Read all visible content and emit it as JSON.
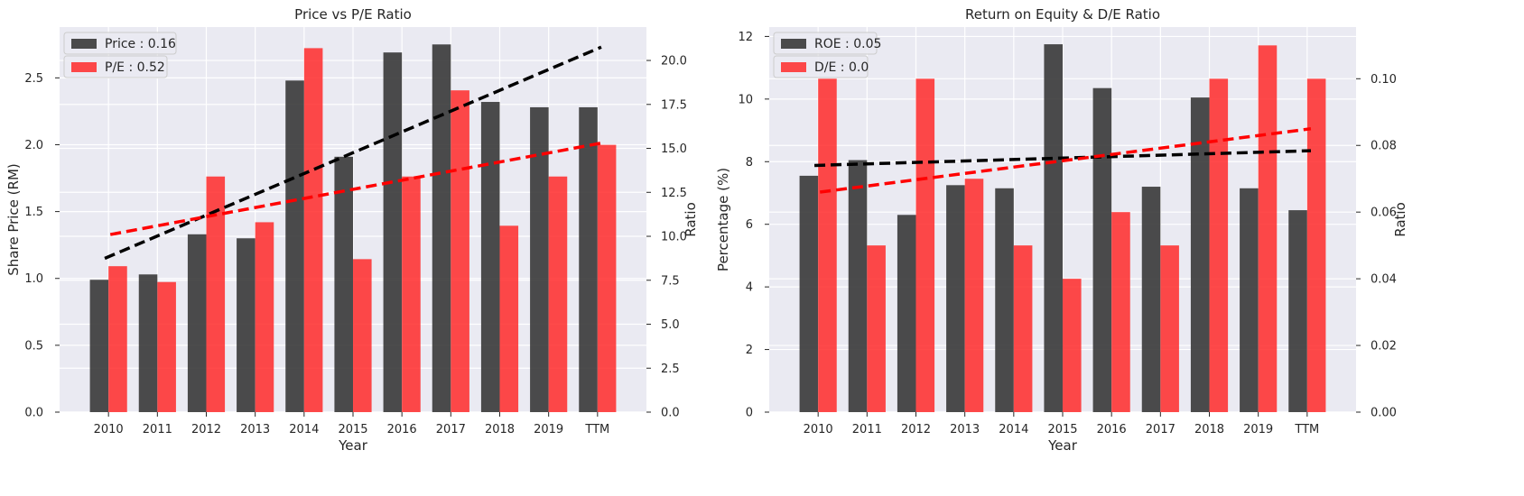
{
  "colors": {
    "plot_bg": "#eaeaf2",
    "grid": "#ffffff",
    "bar_primary": "#333333",
    "bar_secondary": "#ff2a2a",
    "trend_primary": "#000000",
    "trend_secondary": "#ff0000"
  },
  "chart_data": [
    {
      "type": "bar",
      "title": "Price vs P/E Ratio",
      "xlabel": "Year",
      "ylabel_left": "Share Price (RM)",
      "ylabel_right": "Ratio",
      "categories": [
        "2010",
        "2011",
        "2012",
        "2013",
        "2014",
        "2015",
        "2016",
        "2017",
        "2018",
        "2019",
        "TTM"
      ],
      "ylim_left": [
        0,
        2.88
      ],
      "ylim_right": [
        0,
        21.9
      ],
      "yticks_left": [
        "0.0",
        "0.5",
        "1.0",
        "1.5",
        "2.0",
        "2.5"
      ],
      "yticks_right": [
        "0.0",
        "2.5",
        "5.0",
        "7.5",
        "10.0",
        "12.5",
        "15.0",
        "17.5",
        "20.0"
      ],
      "legend_position": "top-left",
      "grid": true,
      "series": [
        {
          "name": "Price : 0.16",
          "axis": "left",
          "values": [
            0.99,
            1.03,
            1.33,
            1.3,
            2.48,
            1.91,
            2.69,
            2.75,
            2.32,
            2.28,
            2.28
          ],
          "trend": [
            1.15,
            2.73
          ]
        },
        {
          "name": "P/E : 0.52",
          "axis": "right",
          "values": [
            8.3,
            7.4,
            13.4,
            10.8,
            20.7,
            8.7,
            13.4,
            18.3,
            10.6,
            13.4,
            15.2
          ],
          "trend": [
            10.1,
            15.3
          ]
        }
      ]
    },
    {
      "type": "bar",
      "title": "Return on Equity & D/E Ratio",
      "xlabel": "Year",
      "ylabel_left": "Percentage (%)",
      "ylabel_right": "Ratio",
      "categories": [
        "2010",
        "2011",
        "2012",
        "2013",
        "2014",
        "2015",
        "2016",
        "2017",
        "2018",
        "2019",
        "TTM"
      ],
      "ylim_left": [
        0,
        12.3
      ],
      "ylim_right": [
        0,
        0.1155
      ],
      "yticks_left": [
        "0",
        "2",
        "4",
        "6",
        "8",
        "10",
        "12"
      ],
      "yticks_right": [
        "0.00",
        "0.02",
        "0.04",
        "0.06",
        "0.08",
        "0.10"
      ],
      "legend_position": "top-left",
      "grid": true,
      "series": [
        {
          "name": "ROE : 0.05",
          "axis": "left",
          "values": [
            7.55,
            8.05,
            6.3,
            7.25,
            7.15,
            11.75,
            10.35,
            7.2,
            10.05,
            7.15,
            6.45
          ],
          "trend": [
            7.88,
            8.35
          ]
        },
        {
          "name": "D/E : 0.0",
          "axis": "right",
          "values": [
            0.1,
            0.05,
            0.1,
            0.07,
            0.05,
            0.04,
            0.06,
            0.05,
            0.1,
            0.11,
            0.1
          ],
          "trend": [
            0.066,
            0.085
          ]
        }
      ]
    }
  ]
}
